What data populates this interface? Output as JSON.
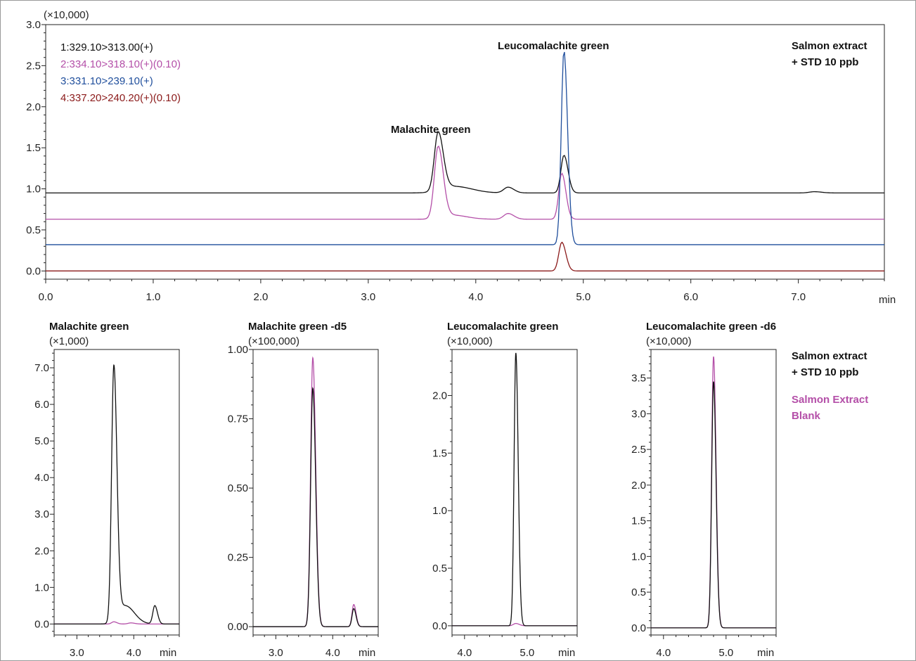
{
  "colors": {
    "black": "#111111",
    "magenta": "#b44fa8",
    "blue": "#1f4e9c",
    "darkred": "#8b1a1a"
  },
  "chart_data": [
    {
      "type": "line",
      "id": "main",
      "multiplier": "(×10,000)",
      "xlabel": "min",
      "xlim": [
        0.0,
        7.8
      ],
      "ylim": [
        -0.1,
        3.0
      ],
      "xticks": [
        "0.0",
        "1.0",
        "2.0",
        "3.0",
        "4.0",
        "5.0",
        "6.0",
        "7.0"
      ],
      "yticks": [
        "0.0",
        "0.5",
        "1.0",
        "1.5",
        "2.0",
        "2.5",
        "3.0"
      ],
      "legend": [
        {
          "label": "1:329.10>313.00(+)",
          "color": "#111111"
        },
        {
          "label": "2:334.10>318.10(+)(0.10)",
          "color": "#b44fa8"
        },
        {
          "label": "3:331.10>239.10(+)",
          "color": "#1f4e9c"
        },
        {
          "label": "4:337.20>240.20(+)(0.10)",
          "color": "#8b1a1a"
        }
      ],
      "annotations": [
        "Malachite green",
        "Leucomalachite green"
      ],
      "sample_label": [
        "Salmon extract",
        "+ STD 10 ppb"
      ],
      "series": [
        {
          "color": "#111111",
          "baseline": 0.95,
          "peaks": [
            [
              3.65,
              0.71,
              0.035
            ],
            [
              3.8,
              0.08,
              0.12
            ],
            [
              4.3,
              0.07,
              0.04
            ],
            [
              4.82,
              0.46,
              0.028
            ],
            [
              7.15,
              0.015,
              0.05
            ]
          ]
        },
        {
          "color": "#b44fa8",
          "baseline": 0.63,
          "peaks": [
            [
              3.65,
              0.87,
              0.035
            ],
            [
              3.78,
              0.05,
              0.1
            ],
            [
              4.3,
              0.07,
              0.04
            ],
            [
              4.8,
              0.56,
              0.028
            ]
          ]
        },
        {
          "color": "#1f4e9c",
          "baseline": 0.32,
          "peaks": [
            [
              4.82,
              2.37,
              0.025
            ]
          ]
        },
        {
          "color": "#8b1a1a",
          "baseline": 0.0,
          "peaks": [
            [
              4.8,
              0.35,
              0.028
            ]
          ]
        }
      ]
    },
    {
      "type": "line",
      "id": "mg",
      "title": "Malachite green",
      "multiplier": "(×1,000)",
      "xlabel": "min",
      "xlim": [
        2.6,
        4.8
      ],
      "ylim": [
        -0.3,
        7.5
      ],
      "xticks": [
        "3.0",
        "4.0"
      ],
      "yticks": [
        "0.0",
        "1.0",
        "2.0",
        "3.0",
        "4.0",
        "5.0",
        "6.0",
        "7.0"
      ],
      "series": [
        {
          "color": "#b44fa8",
          "baseline": 0.0,
          "peaks": [
            [
              3.65,
              0.06,
              0.04
            ],
            [
              3.95,
              0.03,
              0.05
            ]
          ]
        },
        {
          "color": "#111111",
          "baseline": 0.0,
          "peaks": [
            [
              3.65,
              6.95,
              0.04
            ],
            [
              3.85,
              0.5,
              0.12
            ],
            [
              4.37,
              0.5,
              0.035
            ]
          ]
        }
      ]
    },
    {
      "type": "line",
      "id": "mgd5",
      "title": "Malachite green -d5",
      "multiplier": "(×100,000)",
      "xlabel": "min",
      "xlim": [
        2.6,
        4.8
      ],
      "ylim": [
        -0.03,
        1.0
      ],
      "xticks": [
        "3.0",
        "4.0"
      ],
      "yticks": [
        "0.00",
        "0.25",
        "0.50",
        "0.75",
        "1.00"
      ],
      "series": [
        {
          "color": "#b44fa8",
          "baseline": 0.0,
          "peaks": [
            [
              3.65,
              0.97,
              0.038
            ],
            [
              4.37,
              0.08,
              0.03
            ]
          ]
        },
        {
          "color": "#111111",
          "baseline": 0.0,
          "peaks": [
            [
              3.65,
              0.86,
              0.038
            ],
            [
              4.37,
              0.065,
              0.03
            ]
          ]
        }
      ]
    },
    {
      "type": "line",
      "id": "lmg",
      "title": "Leucomalachite green",
      "multiplier": "(×10,000)",
      "xlabel": "min",
      "xlim": [
        3.8,
        5.8
      ],
      "ylim": [
        -0.08,
        2.4
      ],
      "xticks": [
        "4.0",
        "5.0"
      ],
      "yticks": [
        "0.0",
        "0.5",
        "1.0",
        "1.5",
        "2.0"
      ],
      "series": [
        {
          "color": "#b44fa8",
          "baseline": 0.0,
          "peaks": [
            [
              4.82,
              0.02,
              0.04
            ]
          ]
        },
        {
          "color": "#111111",
          "baseline": 0.0,
          "peaks": [
            [
              4.82,
              2.37,
              0.028
            ]
          ]
        }
      ]
    },
    {
      "type": "line",
      "id": "lmgd6",
      "title": "Leucomalachite green -d6",
      "multiplier": "(×10,000)",
      "xlabel": "min",
      "xlim": [
        3.8,
        5.8
      ],
      "ylim": [
        -0.1,
        3.9
      ],
      "xticks": [
        "4.0",
        "5.0"
      ],
      "yticks": [
        "0.0",
        "0.5",
        "1.0",
        "1.5",
        "2.0",
        "2.5",
        "3.0",
        "3.5"
      ],
      "series": [
        {
          "color": "#b44fa8",
          "baseline": 0.0,
          "peaks": [
            [
              4.8,
              3.8,
              0.03
            ]
          ]
        },
        {
          "color": "#111111",
          "baseline": 0.0,
          "peaks": [
            [
              4.8,
              3.45,
              0.03
            ]
          ]
        }
      ]
    }
  ],
  "side_legend": {
    "sample_line1": "Salmon extract",
    "sample_line2": "+ STD 10 ppb",
    "blank_line1": "Salmon Extract",
    "blank_line2": "Blank"
  }
}
